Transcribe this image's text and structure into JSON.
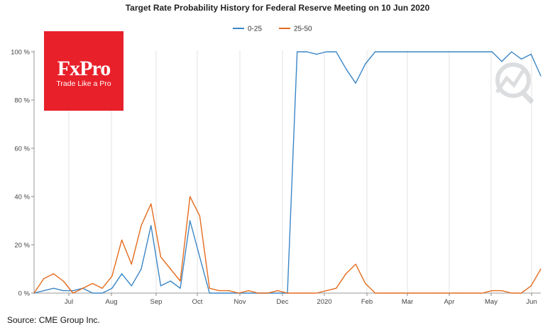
{
  "chart_data": {
    "type": "line",
    "title": "Target Rate Probability History for Federal Reserve Meeting on 10 Jun 2020",
    "xlabel": "",
    "ylabel": "",
    "x_tick_labels": [
      "Jul",
      "Aug",
      "Sep",
      "Oct",
      "Nov",
      "Dec",
      "2020",
      "Feb",
      "Mar",
      "Apr",
      "May",
      "Jun"
    ],
    "y_tick_labels": [
      "0 %",
      "20 %",
      "40 %",
      "60 %",
      "80 %",
      "100 %"
    ],
    "ylim": [
      0,
      100
    ],
    "grid": "vertical",
    "legend": "top-center",
    "x": [
      "Jun 17",
      "Jun 24",
      "Jul 1",
      "Jul 8",
      "Jul 15",
      "Jul 22",
      "Jul 29",
      "Aug 5",
      "Aug 12",
      "Aug 19",
      "Aug 26",
      "Sep 2",
      "Sep 9",
      "Sep 16",
      "Sep 23",
      "Sep 30",
      "Oct 3",
      "Oct 7",
      "Oct 14",
      "Oct 21",
      "Oct 28",
      "Nov 4",
      "Nov 11",
      "Nov 18",
      "Nov 25",
      "Dec 2",
      "Dec 9",
      "Dec 16",
      "Dec 23",
      "Dec 30",
      "Jan 6",
      "Jan 13",
      "Jan 20",
      "Jan 27",
      "Feb 3",
      "Feb 10",
      "Feb 17",
      "Feb 24",
      "Mar 2",
      "Mar 9",
      "Mar 16",
      "Mar 23",
      "Mar 30",
      "Apr 6",
      "Apr 13",
      "Apr 20",
      "Apr 27",
      "May 4",
      "May 11",
      "May 18",
      "May 25",
      "Jun 1",
      "Jun 5"
    ],
    "series": [
      {
        "name": "0-25",
        "color": "#3b86c6",
        "values": [
          0,
          1,
          2,
          1,
          1,
          2,
          0,
          0,
          2,
          8,
          3,
          10,
          28,
          3,
          5,
          2,
          30,
          15,
          0,
          0,
          0,
          0,
          0,
          0,
          0,
          0,
          0,
          100,
          100,
          99,
          100,
          100,
          93,
          87,
          95,
          100,
          100,
          100,
          100,
          100,
          100,
          100,
          100,
          100,
          100,
          100,
          100,
          100,
          96,
          100,
          97,
          99,
          90
        ]
      },
      {
        "name": "25-50",
        "color": "#e46c1e",
        "values": [
          0,
          6,
          8,
          5,
          0,
          2,
          4,
          2,
          7,
          22,
          12,
          28,
          37,
          15,
          10,
          5,
          40,
          32,
          2,
          1,
          1,
          0,
          1,
          0,
          0,
          1,
          0,
          0,
          0,
          0,
          1,
          2,
          8,
          12,
          4,
          0,
          0,
          0,
          0,
          0,
          0,
          0,
          0,
          0,
          0,
          0,
          0,
          1,
          1,
          0,
          0,
          3,
          10
        ]
      }
    ]
  },
  "logo": {
    "text": "FxPro",
    "tagline": "Trade Like a Pro"
  },
  "source": "Source: CME Group Inc."
}
